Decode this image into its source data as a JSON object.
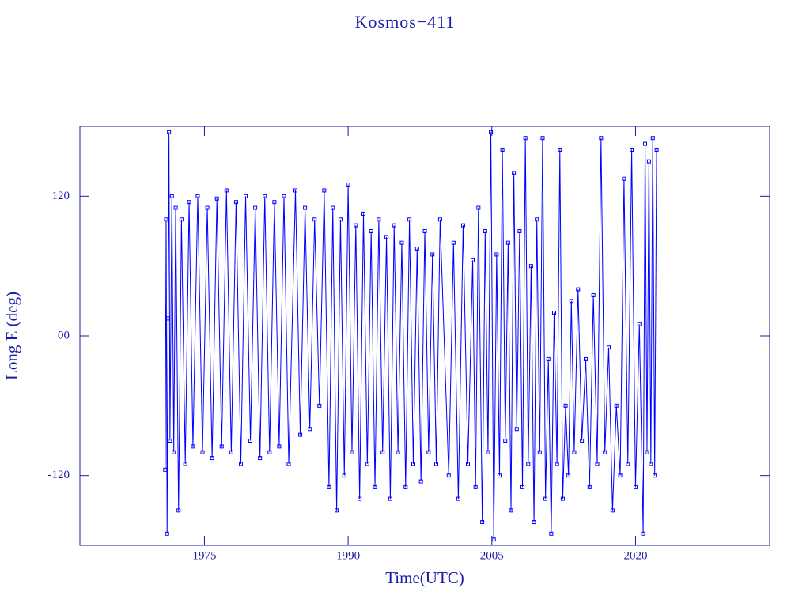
{
  "chart_data": {
    "type": "line",
    "title": "Kosmos−411",
    "xlabel": "Time(UTC)",
    "ylabel": "Long E (deg)",
    "color": "#0000ff",
    "axis_color": "#1a1aa6",
    "markers": true,
    "xlim": [
      1962,
      2034
    ],
    "xticks": [
      1975,
      1990,
      2005,
      2020
    ],
    "ylim": [
      -180,
      180
    ],
    "yticks": [
      -120,
      {
        "value": 0,
        "label": "00"
      },
      120
    ],
    "x": [
      1970.9,
      1971.0,
      1971.1,
      1971.2,
      1971.3,
      1971.4,
      1971.6,
      1971.8,
      1972.0,
      1972.3,
      1972.6,
      1973.0,
      1973.4,
      1973.8,
      1974.3,
      1974.8,
      1975.3,
      1975.8,
      1976.3,
      1976.8,
      1977.3,
      1977.8,
      1978.3,
      1978.8,
      1979.3,
      1979.8,
      1980.3,
      1980.8,
      1981.3,
      1981.8,
      1982.3,
      1982.8,
      1983.3,
      1983.8,
      1984.5,
      1985.0,
      1985.5,
      1986.0,
      1986.5,
      1987.0,
      1987.5,
      1988.0,
      1988.4,
      1988.8,
      1989.2,
      1989.6,
      1990.0,
      1990.4,
      1990.8,
      1991.2,
      1991.6,
      1992.0,
      1992.4,
      1992.8,
      1993.2,
      1993.6,
      1994.0,
      1994.4,
      1994.8,
      1995.2,
      1995.6,
      1996.0,
      1996.4,
      1996.8,
      1997.2,
      1997.6,
      1998.0,
      1998.4,
      1998.8,
      1999.2,
      1999.6,
      2000.5,
      2001.0,
      2001.5,
      2002.0,
      2002.5,
      2003.0,
      2003.3,
      2003.6,
      2004.0,
      2004.3,
      2004.6,
      2004.9,
      2005.2,
      2005.5,
      2005.8,
      2006.1,
      2006.4,
      2006.7,
      2007.0,
      2007.3,
      2007.6,
      2007.9,
      2008.2,
      2008.5,
      2008.8,
      2009.1,
      2009.4,
      2009.7,
      2010.0,
      2010.3,
      2010.6,
      2010.9,
      2011.2,
      2011.5,
      2011.8,
      2012.1,
      2012.4,
      2012.7,
      2013.0,
      2013.3,
      2013.6,
      2014.0,
      2014.4,
      2014.8,
      2015.2,
      2015.6,
      2016.0,
      2016.4,
      2016.8,
      2017.2,
      2017.6,
      2018.0,
      2018.4,
      2018.8,
      2019.2,
      2019.6,
      2020.0,
      2020.4,
      2020.8,
      2021.0,
      2021.2,
      2021.4,
      2021.6,
      2021.8,
      2022.0,
      2022.2
    ],
    "values": [
      -115,
      100,
      -170,
      15,
      175,
      -90,
      120,
      -100,
      110,
      -150,
      100,
      -110,
      115,
      -95,
      120,
      -100,
      110,
      -105,
      118,
      -95,
      125,
      -100,
      115,
      -110,
      120,
      -90,
      110,
      -105,
      120,
      -100,
      115,
      -95,
      120,
      -110,
      125,
      -85,
      110,
      -80,
      100,
      -60,
      125,
      -130,
      110,
      -150,
      100,
      -120,
      130,
      -100,
      95,
      -140,
      105,
      -110,
      90,
      -130,
      100,
      -100,
      85,
      -140,
      95,
      -100,
      80,
      -130,
      100,
      -110,
      75,
      -125,
      90,
      -100,
      70,
      -110,
      100,
      -120,
      80,
      -140,
      95,
      -110,
      65,
      -130,
      110,
      -160,
      90,
      -100,
      175,
      -175,
      70,
      -120,
      160,
      -90,
      80,
      -150,
      140,
      -80,
      90,
      -130,
      170,
      -110,
      60,
      -160,
      100,
      -100,
      170,
      -140,
      -20,
      -170,
      20,
      -110,
      160,
      -140,
      -60,
      -120,
      30,
      -100,
      40,
      -90,
      -20,
      -130,
      35,
      -110,
      170,
      -100,
      -10,
      -150,
      -60,
      -120,
      135,
      -110,
      160,
      -130,
      10,
      -170,
      165,
      -100,
      150,
      -110,
      170,
      -120,
      160
    ]
  }
}
